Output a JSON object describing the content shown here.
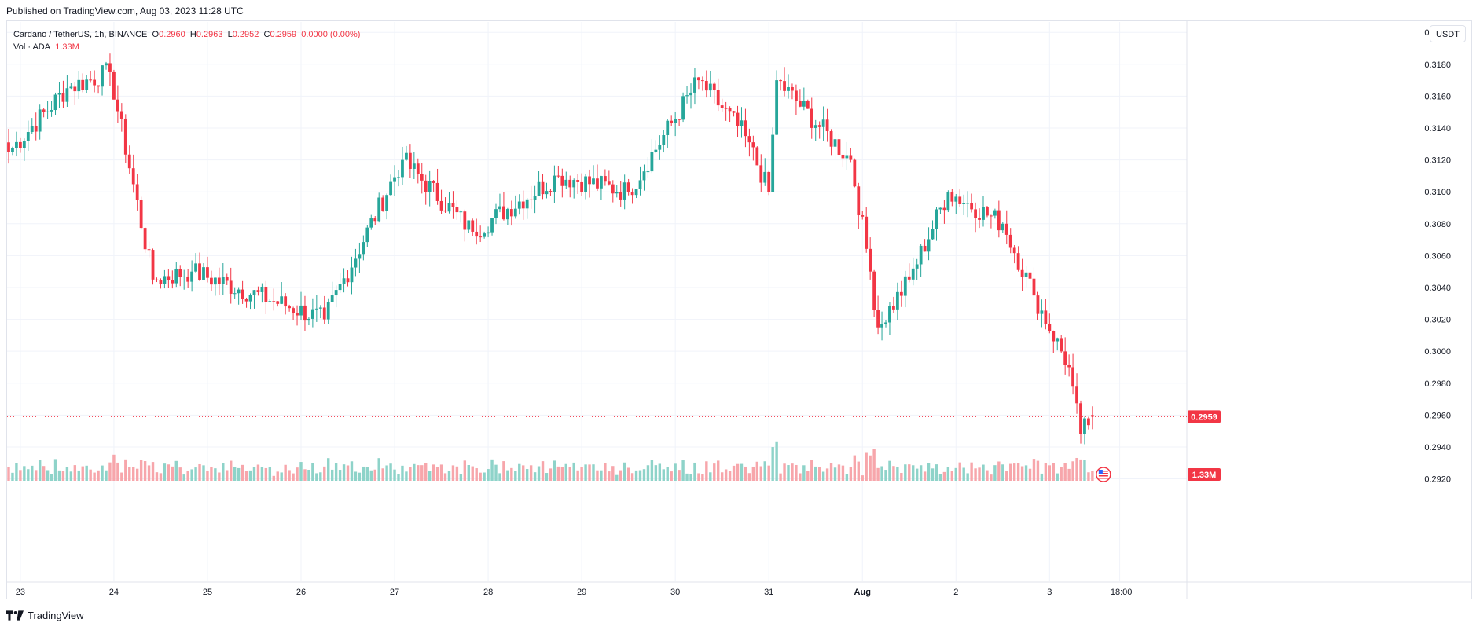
{
  "published": "Published on TradingView.com, Aug 03, 2023 11:28 UTC",
  "currency_button": "USDT",
  "footer": {
    "brand": "TradingView"
  },
  "legend": {
    "symbol": "Cardano / TetherUS, 1h, BINANCE",
    "o_label": "O",
    "o": "0.2960",
    "h_label": "H",
    "h": "0.2963",
    "l_label": "L",
    "l": "0.2952",
    "c_label": "C",
    "c": "0.2959",
    "change": "0.0000 (0.00%)",
    "vol_label": "Vol · ADA",
    "vol": "1.33M"
  },
  "colors": {
    "up": "#26a69a",
    "down": "#f23645",
    "up_vol": "#8ed3c9",
    "down_vol": "#f7a6ab",
    "grid": "#f0f3fa"
  },
  "chart_data": {
    "type": "candlestick",
    "ylim": [
      0.2905,
      0.3207
    ],
    "y_ticks": [
      "0.3200",
      "0.3180",
      "0.3160",
      "0.3140",
      "0.3120",
      "0.3100",
      "0.3080",
      "0.3060",
      "0.3040",
      "0.3020",
      "0.3000",
      "0.2980",
      "0.2960",
      "0.2940",
      "0.2920"
    ],
    "x_ticks": [
      "23",
      "24",
      "25",
      "26",
      "27",
      "28",
      "29",
      "30",
      "31",
      "Aug",
      "2",
      "3",
      "18:00"
    ],
    "last_price": "0.2959",
    "last_volume": "1.33M",
    "key_points": [
      {
        "time": "Jul 22 21:00",
        "close": 0.3125
      },
      {
        "time": "Jul 23 12:00",
        "close": 0.3165
      },
      {
        "time": "Jul 23 23:00",
        "close": 0.3175
      },
      {
        "time": "Jul 24 10:00",
        "close": 0.3045
      },
      {
        "time": "Jul 24 20:00",
        "close": 0.305
      },
      {
        "time": "Jul 26 06:00",
        "close": 0.302
      },
      {
        "time": "Jul 27 02:00",
        "close": 0.312
      },
      {
        "time": "Jul 27 20:00",
        "close": 0.3075
      },
      {
        "time": "Jul 28 18:00",
        "close": 0.311
      },
      {
        "time": "Jul 29 12:00",
        "close": 0.31
      },
      {
        "time": "Jul 30 06:00",
        "close": 0.317
      },
      {
        "time": "Jul 30 18:00",
        "close": 0.3135
      },
      {
        "time": "Jul 31 00:00",
        "close": 0.31
      },
      {
        "time": "Jul 31 02:00",
        "close": 0.317
      },
      {
        "time": "Jul 31 21:00",
        "close": 0.312
      },
      {
        "time": "Aug 01 02:00",
        "close": 0.305
      },
      {
        "time": "Aug 01 04:00",
        "close": 0.3015
      },
      {
        "time": "Aug 01 12:00",
        "close": 0.3045
      },
      {
        "time": "Aug 01 22:00",
        "close": 0.31
      },
      {
        "time": "Aug 02 12:00",
        "close": 0.308
      },
      {
        "time": "Aug 02 20:00",
        "close": 0.3035
      },
      {
        "time": "Aug 03 05:00",
        "close": 0.299
      },
      {
        "time": "Aug 03 08:00",
        "close": 0.2948
      },
      {
        "time": "Aug 03 11:00",
        "close": 0.2959
      }
    ]
  }
}
